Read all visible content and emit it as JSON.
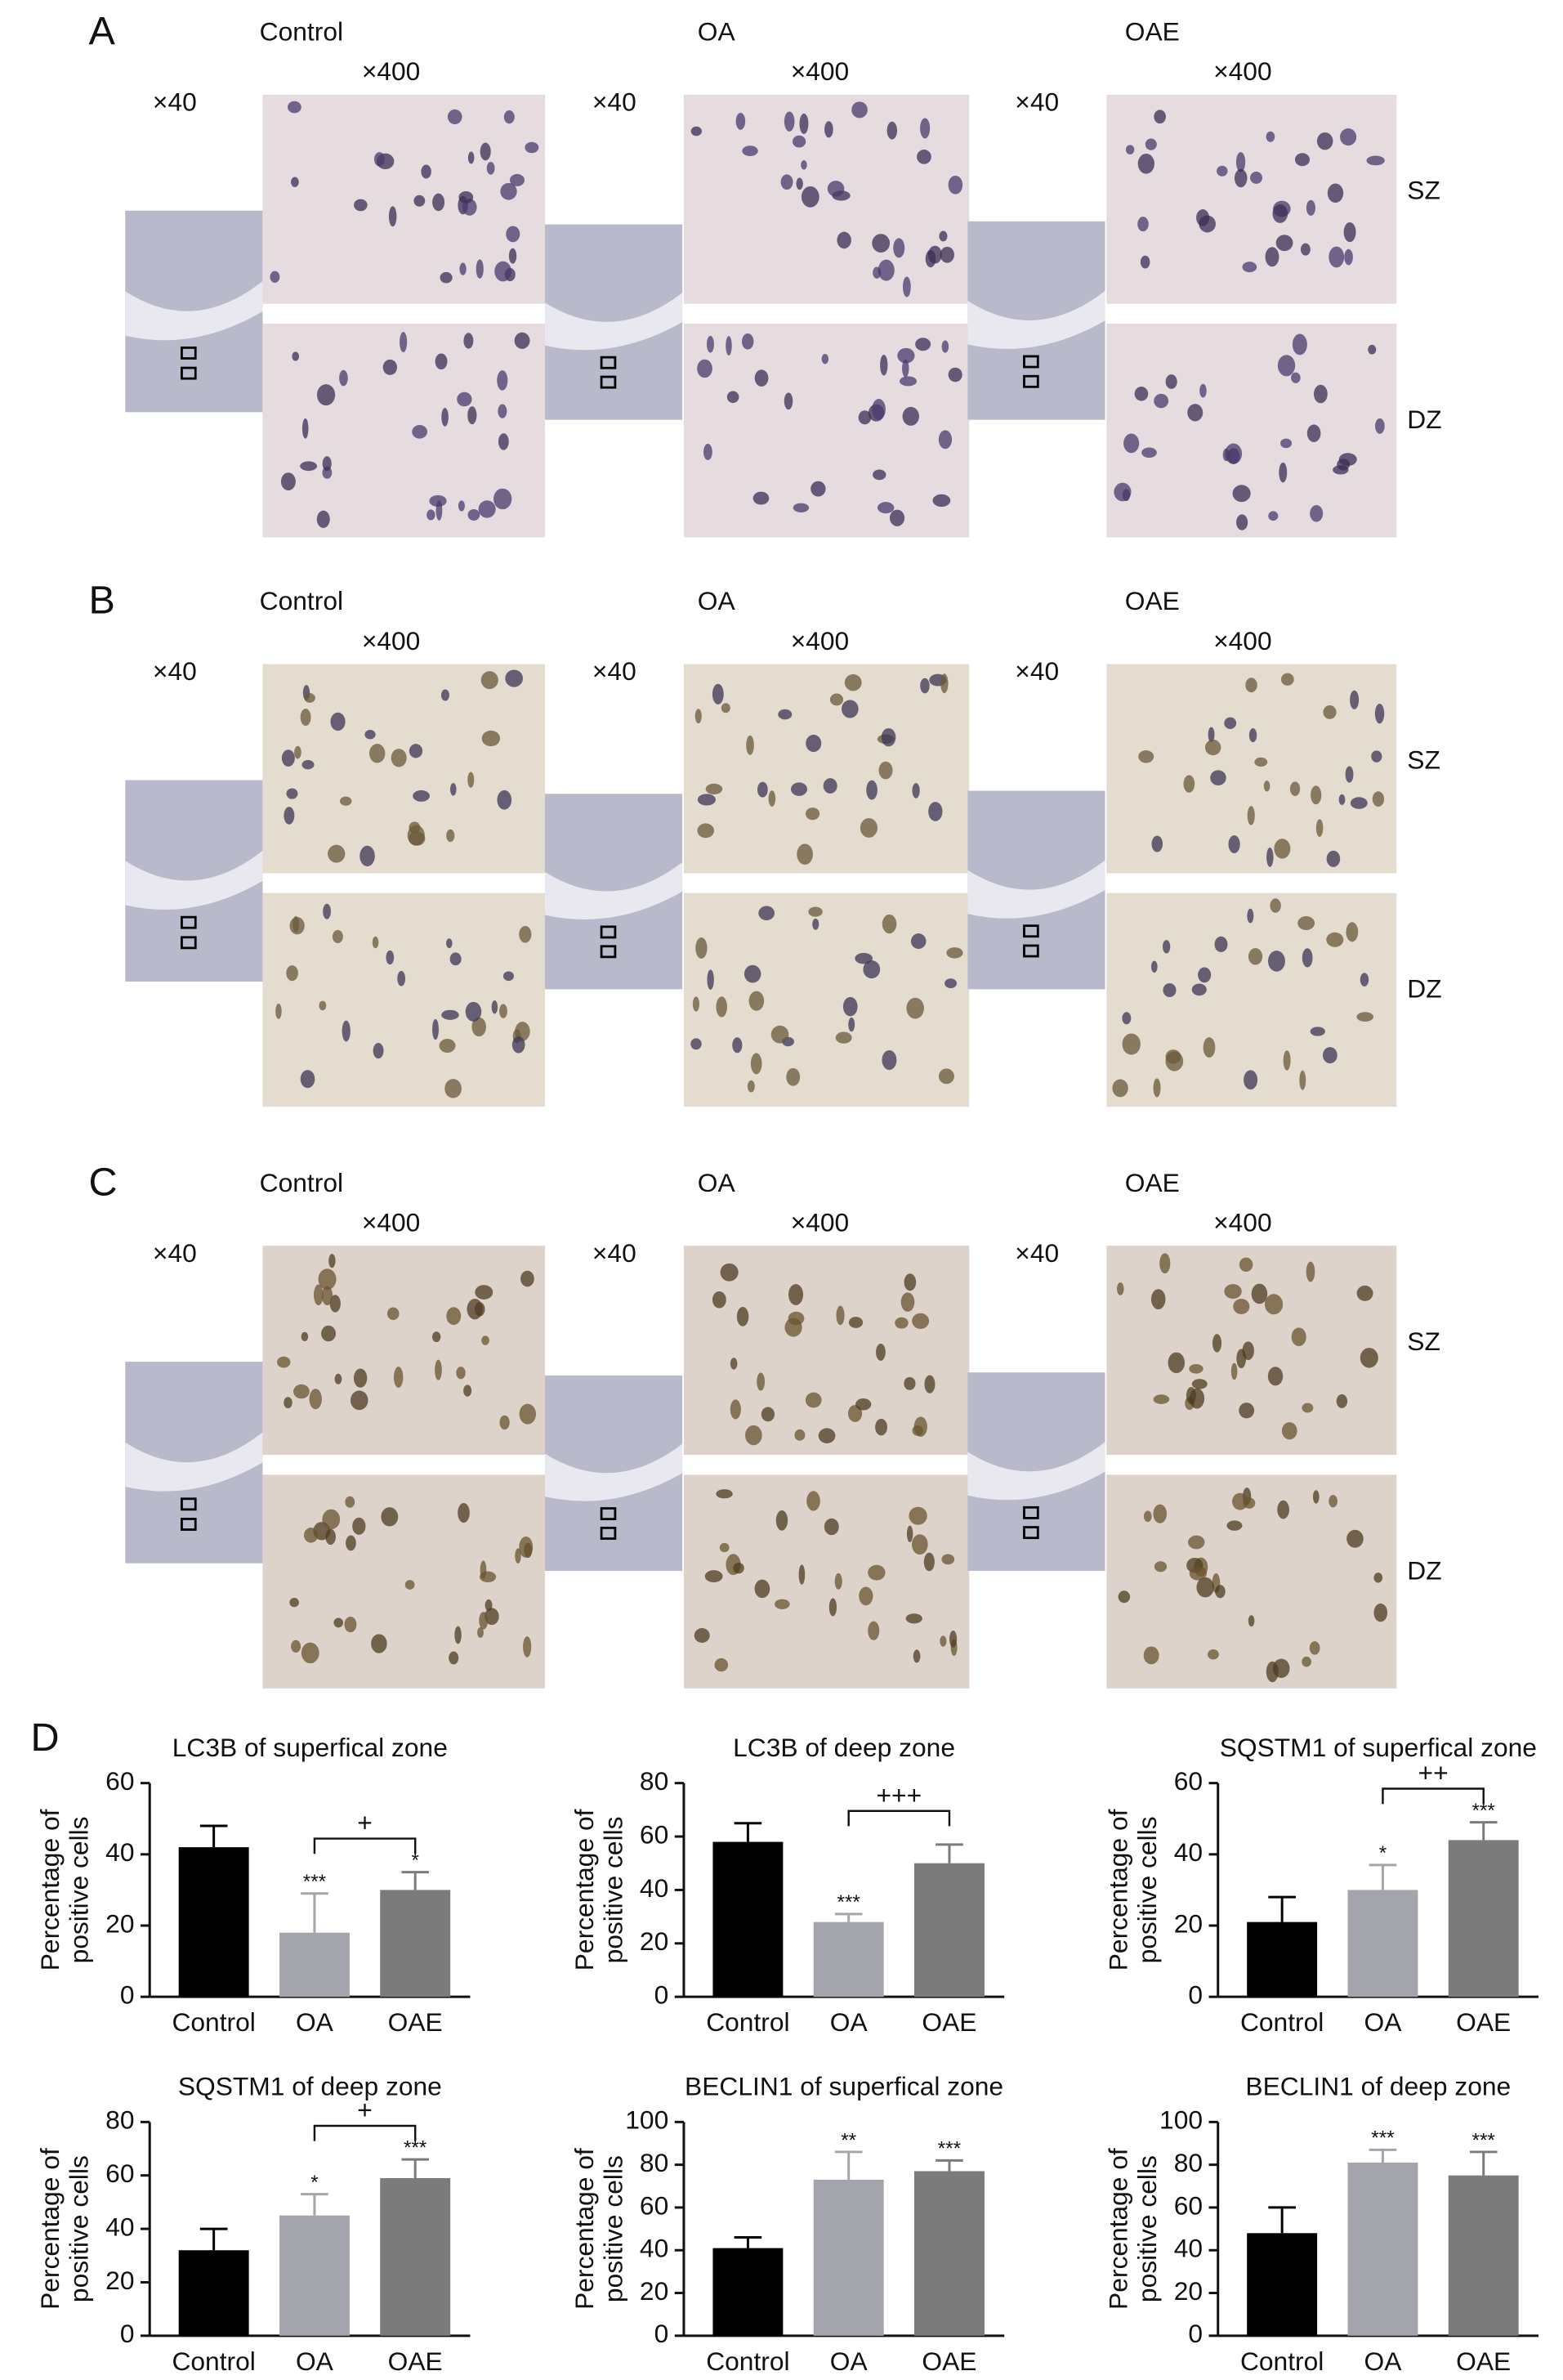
{
  "panels": [
    {
      "label": "A",
      "groups": [
        {
          "name": "Control",
          "low_mag": "×40",
          "high_mag": "×400"
        },
        {
          "name": "OA",
          "low_mag": "×40",
          "high_mag": "×400"
        },
        {
          "name": "OAE",
          "low_mag": "×40",
          "high_mag": "×400"
        }
      ],
      "zones": [
        "SZ",
        "DZ"
      ]
    },
    {
      "label": "B",
      "groups": [
        {
          "name": "Control",
          "low_mag": "×40",
          "high_mag": "×400"
        },
        {
          "name": "OA",
          "low_mag": "×40",
          "high_mag": "×400"
        },
        {
          "name": "OAE",
          "low_mag": "×40",
          "high_mag": "×400"
        }
      ],
      "zones": [
        "SZ",
        "DZ"
      ]
    },
    {
      "label": "C",
      "groups": [
        {
          "name": "Control",
          "low_mag": "×40",
          "high_mag": "×400"
        },
        {
          "name": "OA",
          "low_mag": "×40",
          "high_mag": "×400"
        },
        {
          "name": "OAE",
          "low_mag": "×40",
          "high_mag": "×400"
        }
      ],
      "zones": [
        "SZ",
        "DZ"
      ]
    }
  ],
  "panel_d_label": "D",
  "chart_data": [
    {
      "type": "bar",
      "title": "LC3B of superfical zone",
      "ylabel": [
        "Percentage of",
        "positive cells"
      ],
      "categories": [
        "Control",
        "OA",
        "OAE"
      ],
      "values": [
        42,
        18,
        30
      ],
      "errors": [
        6,
        11,
        5
      ],
      "significance": [
        null,
        "***",
        "*"
      ],
      "bracket": {
        "categories": [
          "OA",
          "OAE"
        ],
        "text": "+"
      },
      "colors": [
        "#000000",
        "#a4a4ac",
        "#7b7b7b"
      ],
      "ylim": [
        0,
        60
      ],
      "yticks": [
        0,
        20,
        40,
        60
      ]
    },
    {
      "type": "bar",
      "title": "LC3B of deep zone",
      "ylabel": [
        "Percentage of",
        "positive cells"
      ],
      "categories": [
        "Control",
        "OA",
        "OAE"
      ],
      "values": [
        58,
        28,
        50
      ],
      "errors": [
        7,
        3,
        7
      ],
      "significance": [
        null,
        "***",
        null
      ],
      "bracket": {
        "categories": [
          "OA",
          "OAE"
        ],
        "text": "+++"
      },
      "colors": [
        "#000000",
        "#a4a4ac",
        "#7b7b7b"
      ],
      "ylim": [
        0,
        80
      ],
      "yticks": [
        0,
        20,
        40,
        60,
        80
      ]
    },
    {
      "type": "bar",
      "title": "SQSTM1 of superfical zone",
      "ylabel": [
        "Percentage of",
        "positive cells"
      ],
      "categories": [
        "Control",
        "OA",
        "OAE"
      ],
      "values": [
        21,
        30,
        44
      ],
      "errors": [
        7,
        7,
        5
      ],
      "significance": [
        null,
        "*",
        "***"
      ],
      "bracket": {
        "categories": [
          "OA",
          "OAE"
        ],
        "text": "++"
      },
      "colors": [
        "#000000",
        "#a4a4ac",
        "#7b7b7b"
      ],
      "ylim": [
        0,
        60
      ],
      "yticks": [
        0,
        20,
        40,
        60
      ]
    },
    {
      "type": "bar",
      "title": "SQSTM1 of deep zone",
      "ylabel": [
        "Percentage of",
        "positive cells"
      ],
      "categories": [
        "Control",
        "OA",
        "OAE"
      ],
      "values": [
        32,
        45,
        59
      ],
      "errors": [
        8,
        8,
        7
      ],
      "significance": [
        null,
        "*",
        "***"
      ],
      "bracket": {
        "categories": [
          "OA",
          "OAE"
        ],
        "text": "+"
      },
      "colors": [
        "#000000",
        "#a4a4ac",
        "#7b7b7b"
      ],
      "ylim": [
        0,
        80
      ],
      "yticks": [
        0,
        20,
        40,
        60,
        80
      ]
    },
    {
      "type": "bar",
      "title": "BECLIN1 of superfical zone",
      "ylabel": [
        "Percentage of",
        "positive cells"
      ],
      "categories": [
        "Control",
        "OA",
        "OAE"
      ],
      "values": [
        41,
        73,
        77
      ],
      "errors": [
        5,
        13,
        5
      ],
      "significance": [
        null,
        "**",
        "***"
      ],
      "colors": [
        "#000000",
        "#a4a4ac",
        "#7b7b7b"
      ],
      "ylim": [
        0,
        100
      ],
      "yticks": [
        0,
        20,
        40,
        60,
        80,
        100
      ]
    },
    {
      "type": "bar",
      "title": "BECLIN1 of deep zone",
      "ylabel": [
        "Percentage of",
        "positive cells"
      ],
      "categories": [
        "Control",
        "OA",
        "OAE"
      ],
      "values": [
        48,
        81,
        75
      ],
      "errors": [
        12,
        6,
        11
      ],
      "significance": [
        null,
        "***",
        "***"
      ],
      "colors": [
        "#000000",
        "#a4a4ac",
        "#7b7b7b"
      ],
      "ylim": [
        0,
        100
      ],
      "yticks": [
        0,
        20,
        40,
        60,
        80,
        100
      ]
    }
  ]
}
